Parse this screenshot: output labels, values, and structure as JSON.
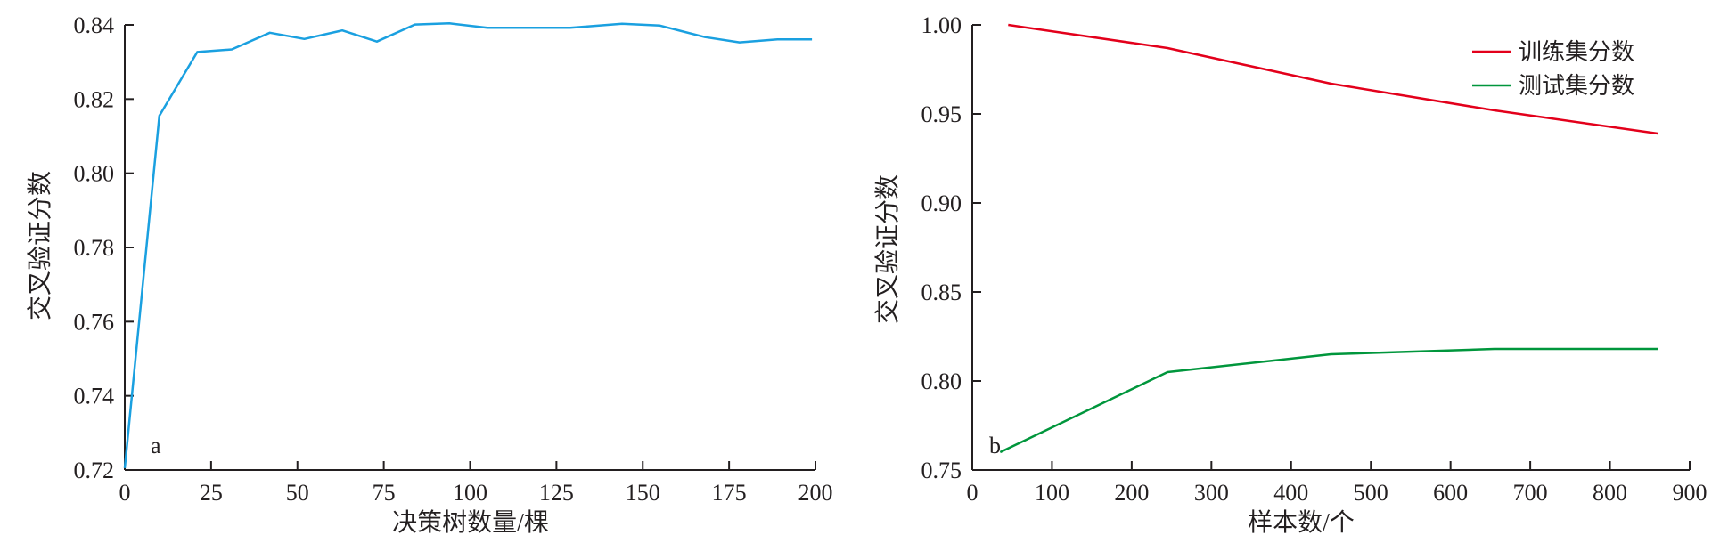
{
  "chart_data": [
    {
      "type": "line",
      "panel_label": "a",
      "xlabel": "决策树数量/棵",
      "ylabel": "交叉验证分数",
      "xlim": [
        0,
        200
      ],
      "ylim": [
        0.72,
        0.84
      ],
      "xticks": [
        "0",
        "25",
        "50",
        "75",
        "100",
        "125",
        "150",
        "175",
        "200"
      ],
      "yticks": [
        "0.72",
        "0.74",
        "0.76",
        "0.78",
        "0.80",
        "0.82",
        "0.84"
      ],
      "grid": false,
      "series": [
        {
          "color": "#1aa0e0",
          "x": [
            0,
            10,
            21,
            31,
            42,
            52,
            63,
            73,
            84,
            94,
            105,
            115,
            129,
            144,
            155,
            168,
            178,
            189,
            199
          ],
          "y": [
            0.7205,
            0.8155,
            0.8327,
            0.8334,
            0.8379,
            0.8362,
            0.8385,
            0.8355,
            0.8401,
            0.8404,
            0.8392,
            0.8392,
            0.8392,
            0.8403,
            0.8398,
            0.8367,
            0.8353,
            0.8361,
            0.8361
          ]
        }
      ]
    },
    {
      "type": "line",
      "panel_label": "b",
      "xlabel": "样本数/个",
      "ylabel": "交叉验证分数",
      "xlim": [
        0,
        900
      ],
      "ylim": [
        0.75,
        1.0
      ],
      "xticks": [
        "0",
        "100",
        "200",
        "300",
        "400",
        "500",
        "600",
        "700",
        "800",
        "900"
      ],
      "yticks": [
        "0.75",
        "0.80",
        "0.85",
        "0.90",
        "0.95",
        "1.00"
      ],
      "grid": false,
      "legend_position": "top-right",
      "series": [
        {
          "name": "训练集分数",
          "color": "#e3001b",
          "x": [
            45,
            245,
            450,
            655,
            860
          ],
          "y": [
            1.0,
            0.987,
            0.967,
            0.952,
            0.939
          ]
        },
        {
          "name": "测试集分数",
          "color": "#00963c",
          "x": [
            35,
            245,
            450,
            655,
            860
          ],
          "y": [
            0.76,
            0.805,
            0.815,
            0.818,
            0.818
          ]
        }
      ]
    }
  ]
}
